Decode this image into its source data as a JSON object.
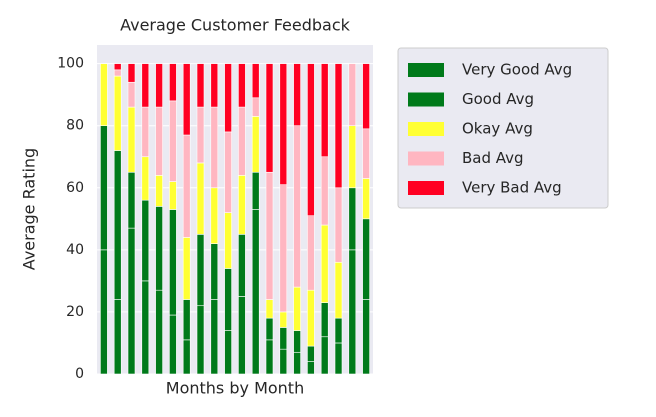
{
  "chart_data": {
    "type": "stacked_bar",
    "title": "Average Customer Feedback",
    "xlabel": "Months by Month",
    "ylabel": "Average Rating",
    "ylim": [
      0,
      106
    ],
    "yticks": [
      0,
      20,
      40,
      60,
      80,
      100
    ],
    "grid": true,
    "legend": "outside right",
    "series": [
      {
        "name": "Very Good Avg",
        "color": "#007a1a",
        "values": [
          40,
          24,
          47,
          30,
          27,
          19,
          11,
          22,
          24,
          14,
          25,
          53,
          11,
          8,
          7,
          4,
          12,
          10,
          40,
          24
        ]
      },
      {
        "name": "Good Avg",
        "color": "#007a1a",
        "values": [
          40,
          48,
          18,
          26,
          27,
          34,
          13,
          23,
          18,
          20,
          20,
          12,
          7,
          7,
          7,
          5,
          11,
          8,
          20,
          26
        ]
      },
      {
        "name": "Okay Avg",
        "color": "#ffff33",
        "values": [
          20,
          24,
          21,
          14,
          10,
          9,
          20,
          23,
          18,
          18,
          19,
          18,
          6,
          5,
          14,
          18,
          25,
          18,
          20,
          13
        ]
      },
      {
        "name": "Bad Avg",
        "color": "#ffb6c1",
        "values": [
          0,
          2,
          8,
          16,
          22,
          26,
          33,
          18,
          26,
          26,
          22,
          6,
          41,
          41,
          52,
          24,
          22,
          24,
          20,
          16
        ]
      },
      {
        "name": "Very Bad Avg",
        "color": "#ff0022",
        "values": [
          0,
          2,
          6,
          14,
          14,
          12,
          23,
          14,
          14,
          22,
          14,
          11,
          35,
          39,
          20,
          49,
          30,
          40,
          0,
          21
        ]
      }
    ]
  }
}
